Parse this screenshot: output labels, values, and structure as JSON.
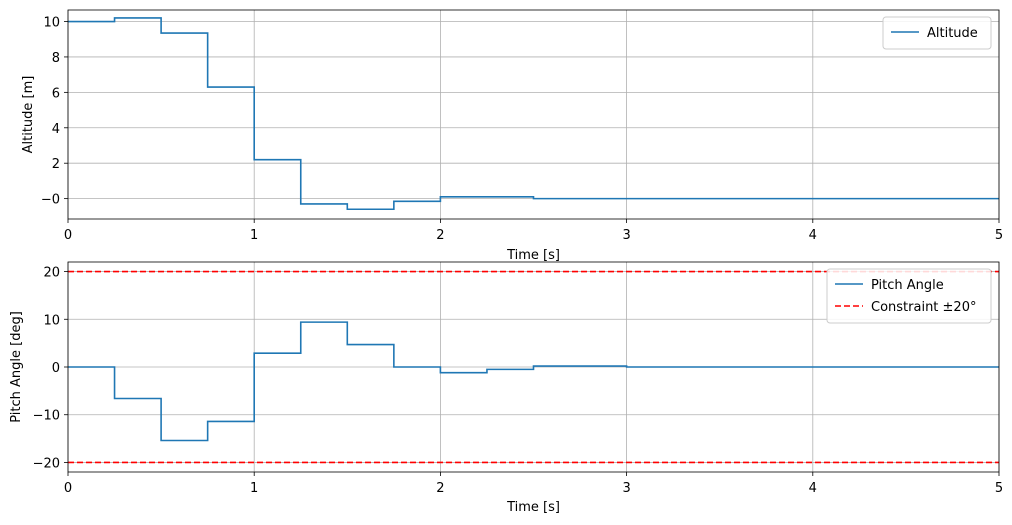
{
  "chart_data": [
    {
      "type": "line",
      "step": "post",
      "xlabel": "Time [s]",
      "ylabel": "Altitude [m]",
      "xlim": [
        0,
        5
      ],
      "ylim": [
        -1.15,
        10.65
      ],
      "xticks": [
        0,
        1,
        2,
        3,
        4,
        5
      ],
      "yticks": [
        0,
        2,
        4,
        6,
        8,
        10
      ],
      "ytick_labels": [
        "−0",
        "2",
        "4",
        "6",
        "8",
        "10"
      ],
      "grid": true,
      "legend_position": "upper-right",
      "series": [
        {
          "name": "Altitude",
          "color": "#1f77b4",
          "style": "solid",
          "x": [
            0,
            0.25,
            0.5,
            0.75,
            1.0,
            1.25,
            1.5,
            1.75,
            2.0,
            2.25,
            2.5,
            3.0,
            3.5,
            4.0,
            4.5,
            5.0
          ],
          "y": [
            10.0,
            10.2,
            9.35,
            6.3,
            2.2,
            -0.3,
            -0.6,
            -0.15,
            0.1,
            0.1,
            0.0,
            0.0,
            0.0,
            0.0,
            0.0,
            0.0
          ]
        }
      ]
    },
    {
      "type": "line",
      "step": "post",
      "xlabel": "Time [s]",
      "ylabel": "Pitch Angle [deg]",
      "xlim": [
        0,
        5
      ],
      "ylim": [
        -22,
        22
      ],
      "xticks": [
        0,
        1,
        2,
        3,
        4,
        5
      ],
      "yticks": [
        -20,
        -10,
        0,
        10,
        20
      ],
      "ytick_labels": [
        "−20",
        "−10",
        "0",
        "10",
        "20"
      ],
      "grid": true,
      "legend_position": "upper-right",
      "series": [
        {
          "name": "Pitch Angle",
          "color": "#1f77b4",
          "style": "solid",
          "x": [
            0,
            0.25,
            0.5,
            0.75,
            1.0,
            1.25,
            1.5,
            1.75,
            2.0,
            2.25,
            2.5,
            3.0,
            3.5,
            4.0,
            4.5,
            5.0
          ],
          "y": [
            0,
            -6.6,
            -15.4,
            -11.4,
            2.9,
            9.4,
            4.7,
            0.0,
            -1.2,
            -0.5,
            0.2,
            0.0,
            0.0,
            0.0,
            0.0,
            0.0
          ]
        }
      ],
      "reference_lines": [
        {
          "name": "Constraint ±20°",
          "color": "#ff0000",
          "style": "dashed",
          "y": 20
        },
        {
          "name": "Constraint ±20°",
          "color": "#ff0000",
          "style": "dashed",
          "y": -20
        }
      ]
    }
  ]
}
